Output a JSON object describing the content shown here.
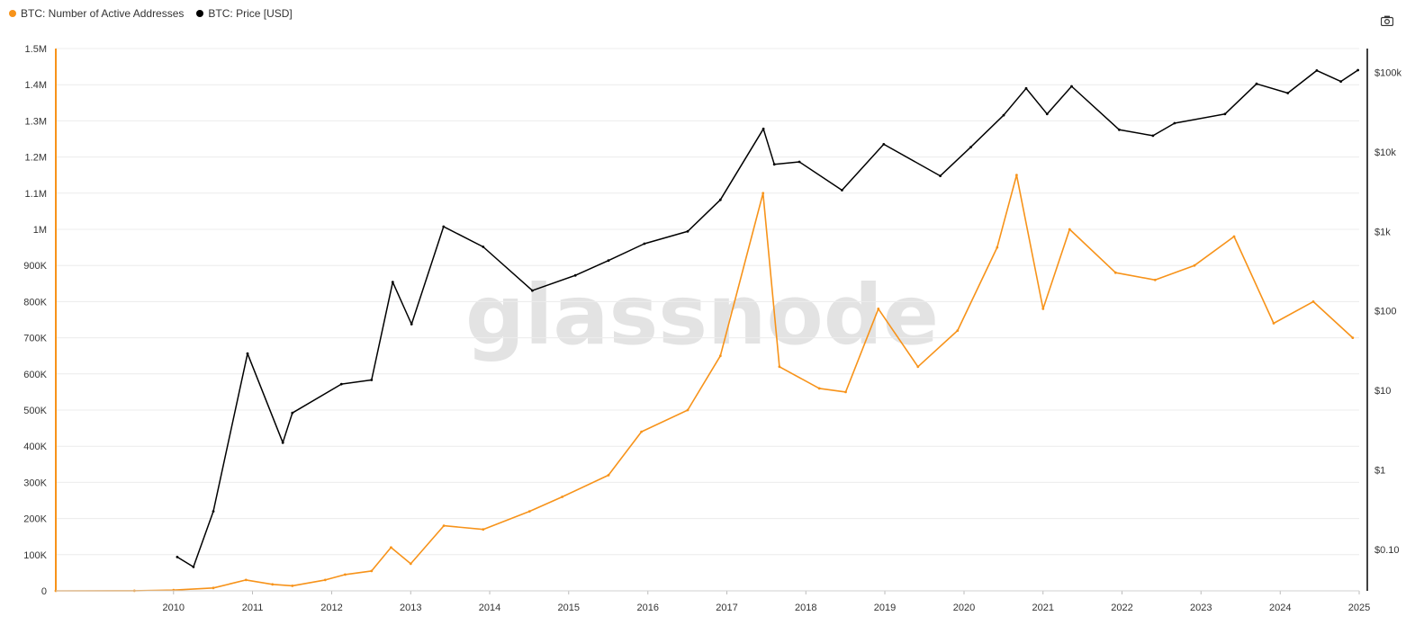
{
  "legend": {
    "series1_label": "BTC: Number of Active Addresses",
    "series2_label": "BTC: Price [USD]"
  },
  "watermark": "glassnode",
  "icons": {
    "export": "camera-icon"
  },
  "colors": {
    "active_addresses": "#f7931a",
    "price": "#000000",
    "grid": "#ececec"
  },
  "chart_data": {
    "type": "line",
    "x_type": "date",
    "x_range": [
      "2009-01-03",
      "2025-07-01"
    ],
    "x_ticks": [
      "2010",
      "2011",
      "2012",
      "2013",
      "2014",
      "2015",
      "2016",
      "2017",
      "2018",
      "2019",
      "2020",
      "2021",
      "2022",
      "2023",
      "2024",
      "2025"
    ],
    "y_left": {
      "ylim": [
        0,
        1500000
      ],
      "ticks": [
        0,
        100000,
        200000,
        300000,
        400000,
        500000,
        600000,
        700000,
        800000,
        900000,
        1000000,
        1100000,
        1200000,
        1300000,
        1400000,
        1500000
      ],
      "tick_labels": [
        "0",
        "100K",
        "200K",
        "300K",
        "400K",
        "500K",
        "600K",
        "700K",
        "800K",
        "900K",
        "1M",
        "1.1M",
        "1.2M",
        "1.3M",
        "1.4M",
        "1.5M"
      ]
    },
    "y_right": {
      "scale": "log",
      "ylim": [
        0.03,
        200000
      ],
      "ticks": [
        0.1,
        1,
        10,
        100,
        1000,
        10000,
        100000
      ],
      "tick_labels": [
        "$0.10",
        "$1",
        "$10",
        "$100",
        "$1k",
        "$10k",
        "$100k"
      ]
    },
    "grid": true,
    "legend_position": "top-left",
    "series": [
      {
        "name": "BTC: Number of Active Addresses",
        "axis": "left",
        "points": [
          [
            "2009-01-03",
            0
          ],
          [
            "2010-01-01",
            200
          ],
          [
            "2010-07-01",
            2000
          ],
          [
            "2011-01-01",
            8000
          ],
          [
            "2011-06-01",
            30000
          ],
          [
            "2011-10-01",
            18000
          ],
          [
            "2012-01-01",
            14000
          ],
          [
            "2012-06-01",
            30000
          ],
          [
            "2012-09-01",
            45000
          ],
          [
            "2013-01-01",
            55000
          ],
          [
            "2013-04-01",
            120000
          ],
          [
            "2013-07-01",
            75000
          ],
          [
            "2013-12-01",
            180000
          ],
          [
            "2014-06-01",
            170000
          ],
          [
            "2015-01-01",
            220000
          ],
          [
            "2015-06-01",
            260000
          ],
          [
            "2016-01-01",
            320000
          ],
          [
            "2016-06-01",
            440000
          ],
          [
            "2017-01-01",
            500000
          ],
          [
            "2017-06-01",
            650000
          ],
          [
            "2017-12-15",
            1100000
          ],
          [
            "2018-03-01",
            620000
          ],
          [
            "2018-09-01",
            560000
          ],
          [
            "2019-01-01",
            550000
          ],
          [
            "2019-06-01",
            780000
          ],
          [
            "2019-12-01",
            620000
          ],
          [
            "2020-06-01",
            720000
          ],
          [
            "2020-12-01",
            950000
          ],
          [
            "2021-03-01",
            1150000
          ],
          [
            "2021-07-01",
            780000
          ],
          [
            "2021-11-01",
            1000000
          ],
          [
            "2022-06-01",
            880000
          ],
          [
            "2022-12-01",
            860000
          ],
          [
            "2023-06-01",
            900000
          ],
          [
            "2023-12-01",
            980000
          ],
          [
            "2024-06-01",
            740000
          ],
          [
            "2024-12-01",
            800000
          ],
          [
            "2025-06-01",
            700000
          ]
        ]
      },
      {
        "name": "BTC: Price [USD]",
        "axis": "right",
        "points": [
          [
            "2010-07-18",
            0.08
          ],
          [
            "2010-10-01",
            0.06
          ],
          [
            "2011-01-01",
            0.3
          ],
          [
            "2011-06-08",
            29
          ],
          [
            "2011-11-18",
            2.2
          ],
          [
            "2012-01-01",
            5.2
          ],
          [
            "2012-08-15",
            12
          ],
          [
            "2013-01-01",
            13.5
          ],
          [
            "2013-04-09",
            230
          ],
          [
            "2013-07-05",
            68
          ],
          [
            "2013-11-30",
            1150
          ],
          [
            "2014-06-01",
            640
          ],
          [
            "2015-01-14",
            180
          ],
          [
            "2015-08-01",
            280
          ],
          [
            "2016-01-01",
            430
          ],
          [
            "2016-06-15",
            700
          ],
          [
            "2017-01-01",
            1000
          ],
          [
            "2017-06-01",
            2500
          ],
          [
            "2017-12-17",
            19500
          ],
          [
            "2018-02-05",
            7000
          ],
          [
            "2018-06-01",
            7500
          ],
          [
            "2018-12-15",
            3300
          ],
          [
            "2019-06-26",
            12500
          ],
          [
            "2020-03-13",
            5000
          ],
          [
            "2020-08-01",
            11500
          ],
          [
            "2020-12-31",
            29000
          ],
          [
            "2021-04-14",
            63000
          ],
          [
            "2021-07-20",
            30000
          ],
          [
            "2021-11-10",
            67000
          ],
          [
            "2022-06-18",
            19000
          ],
          [
            "2022-11-21",
            16000
          ],
          [
            "2023-03-01",
            23000
          ],
          [
            "2023-10-20",
            30000
          ],
          [
            "2024-03-14",
            72000
          ],
          [
            "2024-08-05",
            55000
          ],
          [
            "2024-12-17",
            106000
          ],
          [
            "2025-04-07",
            77000
          ],
          [
            "2025-06-25",
            107000
          ]
        ]
      }
    ]
  }
}
